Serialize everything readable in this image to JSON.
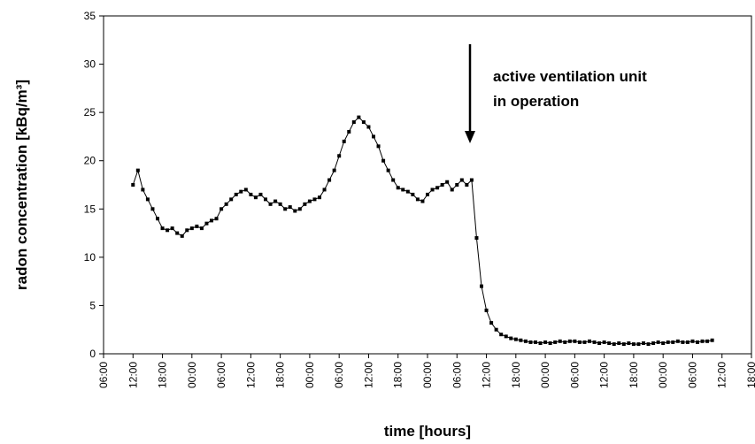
{
  "chart_data": {
    "type": "line",
    "x_label": "time [hours]",
    "y_label": "radon concentration [kBq/m³]",
    "annotation": [
      "active ventilation unit",
      "in operation"
    ],
    "color": "#000000",
    "grid": false,
    "xlim": [
      0,
      132
    ],
    "xticks": [
      {
        "value": 0,
        "label": "06:00"
      },
      {
        "value": 6,
        "label": "12:00"
      },
      {
        "value": 12,
        "label": "18:00"
      },
      {
        "value": 18,
        "label": "00:00"
      },
      {
        "value": 24,
        "label": "06:00"
      },
      {
        "value": 30,
        "label": "12:00"
      },
      {
        "value": 36,
        "label": "18:00"
      },
      {
        "value": 42,
        "label": "00:00"
      },
      {
        "value": 48,
        "label": "06:00"
      },
      {
        "value": 54,
        "label": "12:00"
      },
      {
        "value": 60,
        "label": "18:00"
      },
      {
        "value": 66,
        "label": "00:00"
      },
      {
        "value": 72,
        "label": "06:00"
      },
      {
        "value": 78,
        "label": "12:00"
      },
      {
        "value": 84,
        "label": "18:00"
      },
      {
        "value": 90,
        "label": "00:00"
      },
      {
        "value": 96,
        "label": "06:00"
      },
      {
        "value": 102,
        "label": "12:00"
      },
      {
        "value": 108,
        "label": "18:00"
      },
      {
        "value": 114,
        "label": "00:00"
      },
      {
        "value": 120,
        "label": "06:00"
      },
      {
        "value": 126,
        "label": "12:00"
      },
      {
        "value": 132,
        "label": "18:00"
      }
    ],
    "ylim": [
      0,
      35
    ],
    "yticks": [
      0,
      5,
      10,
      15,
      20,
      25,
      30,
      35
    ],
    "x": [
      6,
      7,
      8,
      9,
      10,
      11,
      12,
      13,
      14,
      15,
      16,
      17,
      18,
      19,
      20,
      21,
      22,
      23,
      24,
      25,
      26,
      27,
      28,
      29,
      30,
      31,
      32,
      33,
      34,
      35,
      36,
      37,
      38,
      39,
      40,
      41,
      42,
      43,
      44,
      45,
      46,
      47,
      48,
      49,
      50,
      51,
      52,
      53,
      54,
      55,
      56,
      57,
      58,
      59,
      60,
      61,
      62,
      63,
      64,
      65,
      66,
      67,
      68,
      69,
      70,
      71,
      72,
      73,
      74,
      75,
      76,
      77,
      78,
      79,
      80,
      81,
      82,
      83,
      84,
      85,
      86,
      87,
      88,
      89,
      90,
      91,
      92,
      93,
      94,
      95,
      96,
      97,
      98,
      99,
      100,
      101,
      102,
      103,
      104,
      105,
      106,
      107,
      108,
      109,
      110,
      111,
      112,
      113,
      114,
      115,
      116,
      117,
      118,
      119,
      120,
      121,
      122,
      123,
      124
    ],
    "values": [
      17.5,
      19,
      17,
      16,
      15,
      14,
      13,
      12.8,
      13,
      12.5,
      12.2,
      12.8,
      13,
      13.2,
      13,
      13.5,
      13.8,
      14,
      15,
      15.5,
      16,
      16.5,
      16.8,
      17,
      16.5,
      16.2,
      16.5,
      16,
      15.5,
      15.8,
      15.5,
      15,
      15.2,
      14.8,
      15,
      15.5,
      15.8,
      16,
      16.2,
      17,
      18,
      19,
      20.5,
      22,
      23,
      24,
      24.5,
      24,
      23.5,
      22.5,
      21.5,
      20,
      19,
      18,
      17.2,
      17,
      16.8,
      16.5,
      16,
      15.8,
      16.5,
      17,
      17.2,
      17.5,
      17.8,
      17,
      17.5,
      18,
      17.5,
      18,
      12,
      7,
      4.5,
      3.2,
      2.5,
      2,
      1.8,
      1.6,
      1.5,
      1.4,
      1.3,
      1.2,
      1.2,
      1.1,
      1.2,
      1.1,
      1.2,
      1.3,
      1.2,
      1.3,
      1.3,
      1.2,
      1.2,
      1.3,
      1.2,
      1.1,
      1.2,
      1.1,
      1.0,
      1.1,
      1.0,
      1.1,
      1.0,
      1.0,
      1.1,
      1.0,
      1.1,
      1.2,
      1.1,
      1.2,
      1.2,
      1.3,
      1.2,
      1.2,
      1.3,
      1.2,
      1.3,
      1.3,
      1.4
    ]
  }
}
